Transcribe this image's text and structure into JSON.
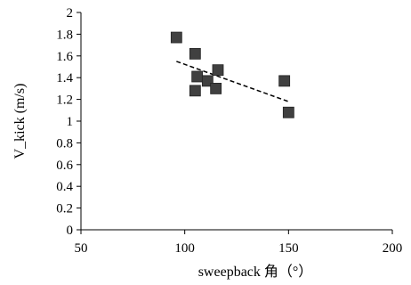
{
  "chart_data": {
    "type": "scatter",
    "title": "",
    "xlabel": "sweepback 角（°）",
    "ylabel": "V_kick (m/s)",
    "xlim": [
      50,
      200
    ],
    "ylim": [
      0,
      2
    ],
    "xticks": [
      "50",
      "100",
      "150",
      "200"
    ],
    "yticks": [
      "0",
      "0.2",
      "0.4",
      "0.6",
      "0.8",
      "1",
      "1.2",
      "1.4",
      "1.6",
      "1.8",
      "2"
    ],
    "grid": false,
    "legend": "none",
    "series": [
      {
        "marker": "square",
        "color": "#404040",
        "points": [
          {
            "x": 96,
            "y": 1.77
          },
          {
            "x": 105,
            "y": 1.62
          },
          {
            "x": 106,
            "y": 1.41
          },
          {
            "x": 105,
            "y": 1.28
          },
          {
            "x": 111,
            "y": 1.37
          },
          {
            "x": 115,
            "y": 1.3
          },
          {
            "x": 116,
            "y": 1.47
          },
          {
            "x": 148,
            "y": 1.37
          },
          {
            "x": 150,
            "y": 1.08
          }
        ]
      }
    ],
    "trendline": {
      "style": "dashed",
      "color": "#000000",
      "from": {
        "x": 96,
        "y": 1.55
      },
      "to": {
        "x": 150,
        "y": 1.18
      }
    }
  }
}
